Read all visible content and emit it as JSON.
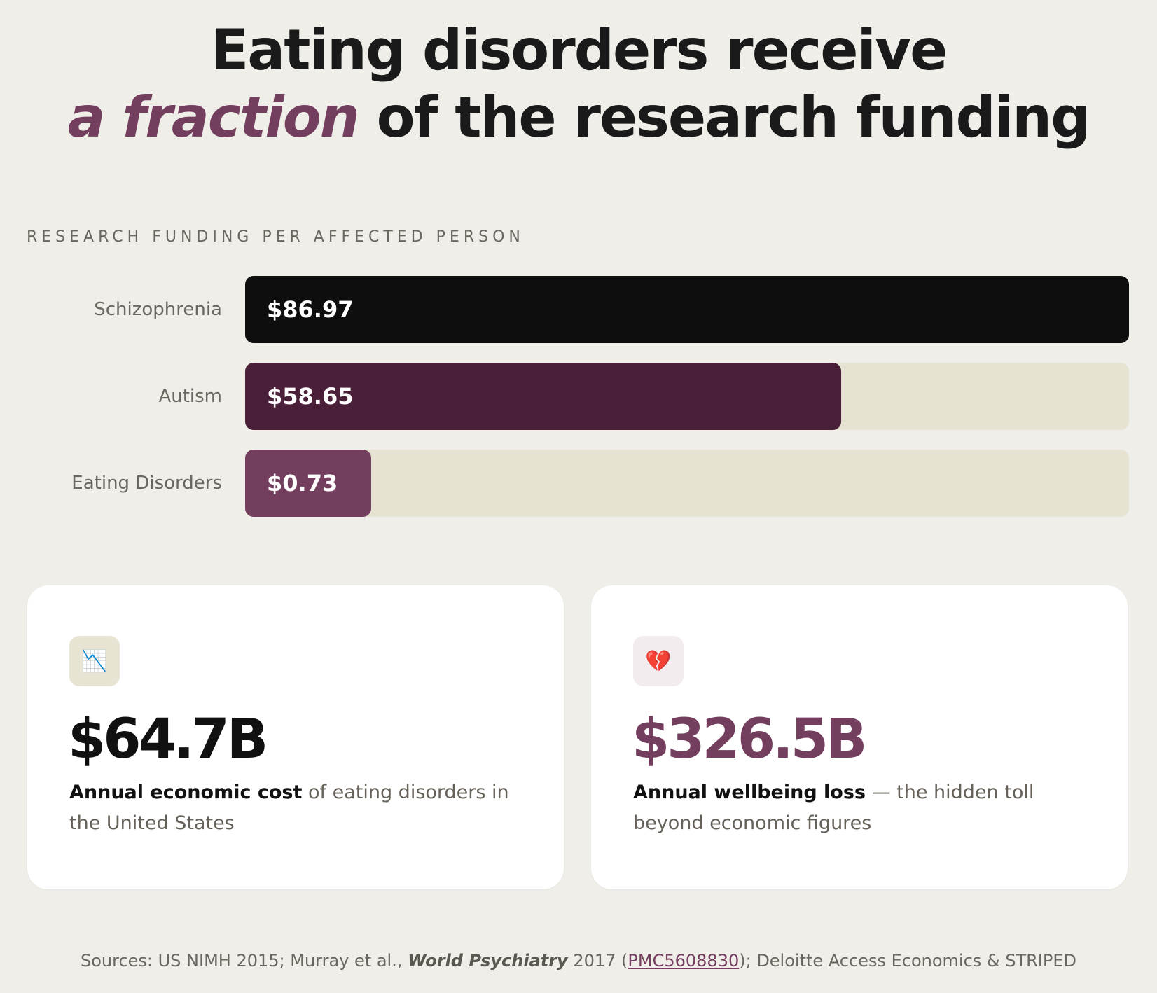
{
  "headline": {
    "line1": "Eating disorders receive",
    "line2_emphasis": "a fraction",
    "line2_rest": " of the research funding"
  },
  "chart_data": {
    "type": "bar",
    "orientation": "horizontal",
    "title": "RESEARCH FUNDING PER AFFECTED PERSON",
    "categories": [
      "Schizophrenia",
      "Autism",
      "Eating Disorders"
    ],
    "values": [
      86.97,
      58.65,
      0.73
    ],
    "value_labels": [
      "$86.97",
      "$58.65",
      "$0.73"
    ],
    "bar_colors": [
      "#0e0e0e",
      "#4a1f38",
      "#743f5f"
    ],
    "track_color": "#e6e3d2",
    "xlim": [
      0,
      86.97
    ],
    "grid": false,
    "legend": "none"
  },
  "cards": [
    {
      "icon": "chart-decreasing-icon",
      "icon_glyph": "📉",
      "stat": "$64.7B",
      "desc_bold": "Annual economic cost",
      "desc_rest": " of eating disorders in the United States"
    },
    {
      "icon": "broken-heart-icon",
      "icon_glyph": "💔",
      "stat": "$326.5B",
      "desc_bold": "Annual wellbeing loss",
      "desc_rest": " — the hidden toll beyond economic figures"
    }
  ],
  "sources": {
    "prefix": "Sources: US NIMH 2015; Murray et al., ",
    "journal": "World Psychiatry",
    "year": " 2017 (",
    "link": "PMC5608830",
    "suffix": "); Deloitte Access Economics & STRIPED"
  },
  "colors": {
    "accent": "#743f5f",
    "background": "#f0eee9"
  }
}
